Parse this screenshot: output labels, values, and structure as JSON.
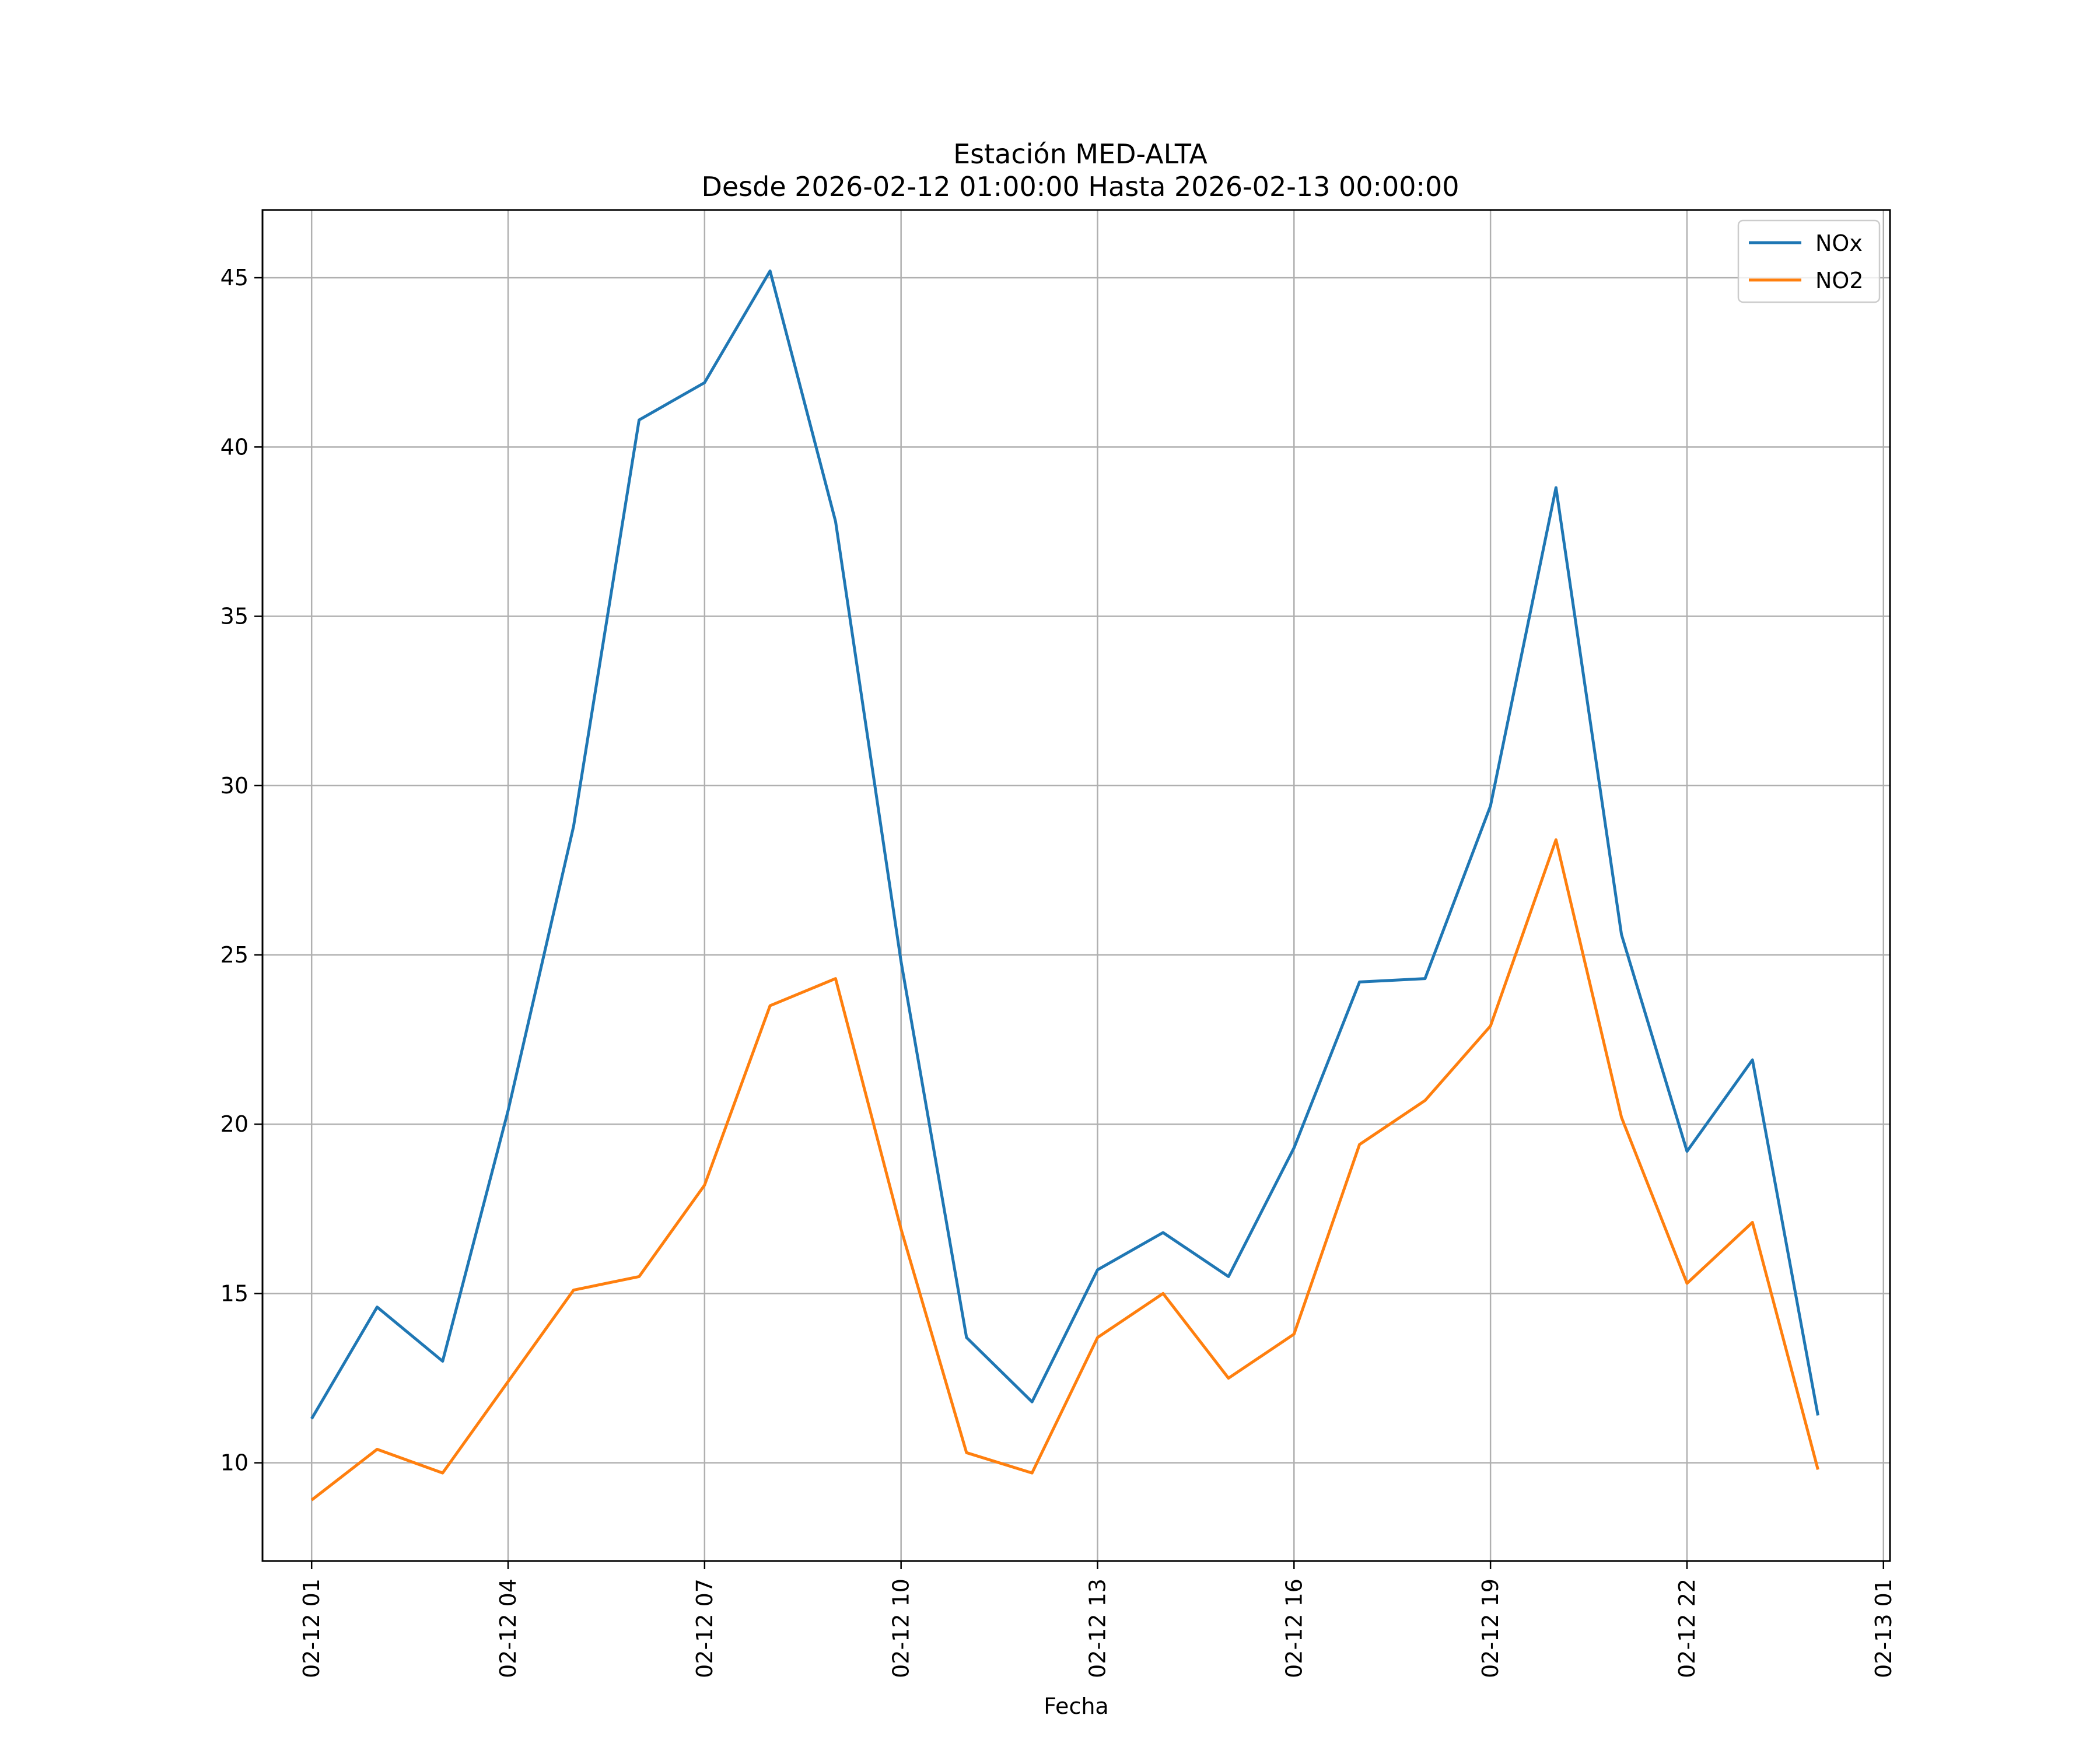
{
  "chart_data": {
    "type": "line",
    "title": "Estación MED-ALTA",
    "subtitle": "Desde 2026-02-12 01:00:00 Hasta 2026-02-13 00:00:00",
    "xlabel": "Fecha",
    "ylabel": "",
    "x_ticks": [
      "02-12 01",
      "02-12 04",
      "02-12 07",
      "02-12 10",
      "02-12 13",
      "02-12 16",
      "02-12 19",
      "02-12 22",
      "02-13 01"
    ],
    "y_ticks": [
      "10",
      "15",
      "20",
      "25",
      "30",
      "35",
      "40",
      "45"
    ],
    "ylim": [
      7.1,
      47.0
    ],
    "xlim_hours": [
      -0.75,
      24.1
    ],
    "grid": true,
    "legend_position": "top-right",
    "x": [
      "02-12 01:00",
      "02-12 02:00",
      "02-12 03:00",
      "02-12 04:00",
      "02-12 05:00",
      "02-12 06:00",
      "02-12 07:00",
      "02-12 08:00",
      "02-12 09:00",
      "02-12 10:00",
      "02-12 11:00",
      "02-12 12:00",
      "02-12 13:00",
      "02-12 14:00",
      "02-12 15:00",
      "02-12 16:00",
      "02-12 17:00",
      "02-12 18:00",
      "02-12 19:00",
      "02-12 20:00",
      "02-12 21:00",
      "02-12 22:00",
      "02-12 23:00",
      "02-13 00:00"
    ],
    "series": [
      {
        "name": "NOx",
        "color": "#1f77b4",
        "values": [
          11.3,
          14.6,
          13.0,
          20.4,
          28.8,
          40.8,
          41.9,
          45.2,
          37.8,
          24.8,
          13.7,
          11.8,
          15.7,
          16.8,
          15.5,
          19.3,
          24.2,
          24.3,
          29.4,
          38.8,
          25.6,
          19.2,
          21.9,
          11.4
        ]
      },
      {
        "name": "NO2",
        "color": "#ff7f0e",
        "values": [
          8.9,
          10.4,
          9.7,
          12.4,
          15.1,
          15.5,
          18.2,
          23.5,
          24.3,
          16.9,
          10.3,
          9.7,
          13.7,
          15.0,
          12.5,
          13.8,
          19.4,
          20.7,
          22.9,
          28.4,
          20.2,
          15.3,
          17.1,
          9.8
        ]
      }
    ]
  }
}
